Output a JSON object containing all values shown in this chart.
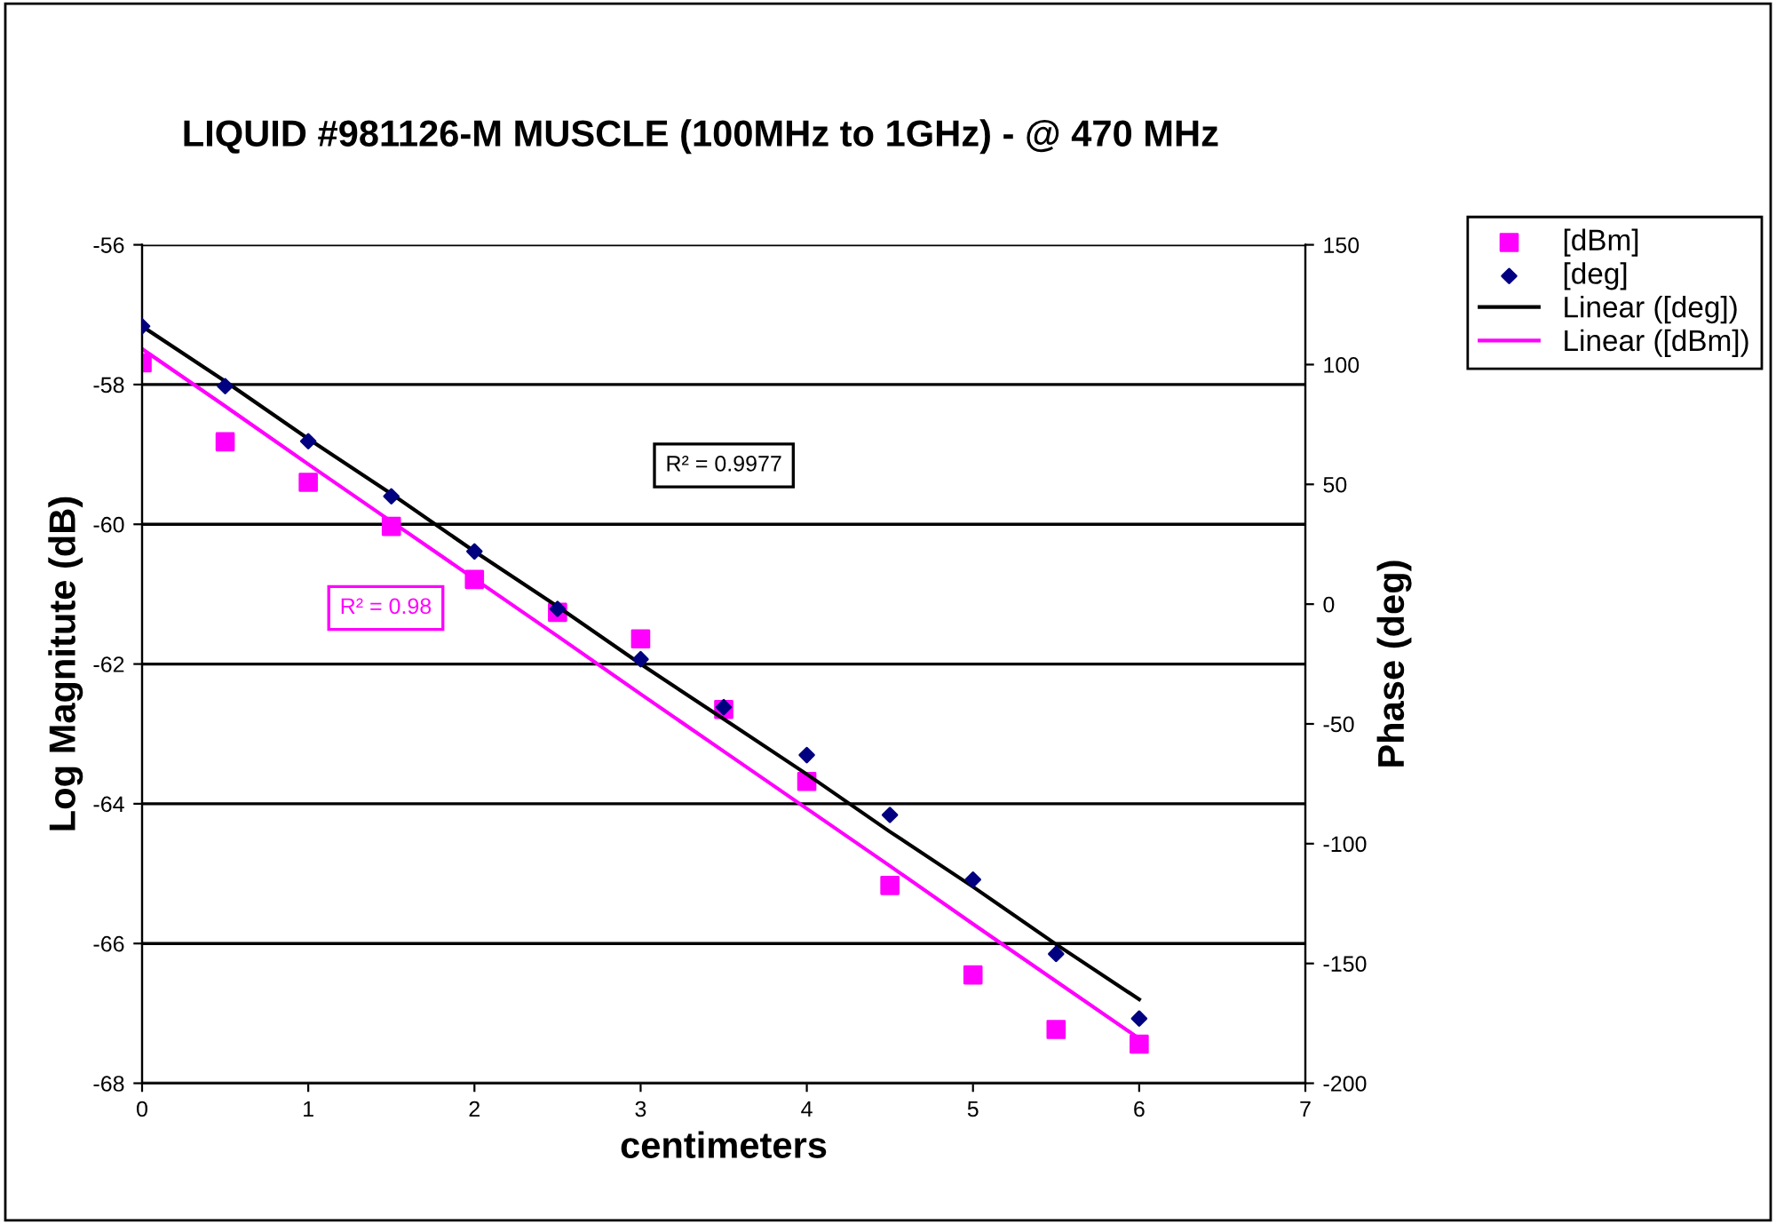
{
  "chart_data": {
    "type": "scatter",
    "title": "LIQUID #981126-M MUSCLE (100MHz to 1GHz) - @ 470 MHz",
    "xlabel": "centimeters",
    "ylabel": "Log Magnitute (dB)",
    "y2label": "Phase (deg)",
    "x": [
      0,
      0.5,
      1,
      1.5,
      2,
      2.5,
      3,
      3.5,
      4,
      4.5,
      5,
      5.5,
      6
    ],
    "series": [
      {
        "name": "[dBm]",
        "color": "#ff00ff",
        "marker": "square",
        "values": [
          -57.69,
          -58.82,
          -59.4,
          -60.03,
          -60.79,
          -61.26,
          -61.64,
          -62.65,
          -63.68,
          -65.17,
          -66.45,
          -67.23,
          -67.44
        ]
      },
      {
        "name": "[deg]",
        "color": "#000080",
        "marker": "diamond",
        "axis": "y2",
        "values": [
          116,
          91,
          68,
          45,
          22,
          -2,
          -23,
          -43,
          -63,
          -88,
          -115,
          -146,
          -173
        ]
      },
      {
        "name": "Linear ([deg])",
        "type": "line",
        "color": "#000000",
        "axis": "y2",
        "values": [
          116,
          93,
          69,
          46,
          22,
          -1,
          -25,
          -48,
          -71,
          -95,
          -118,
          -142,
          -165
        ]
      },
      {
        "name": "Linear ([dBm])",
        "type": "line",
        "color": "#ff00ff",
        "values": [
          -57.49,
          -58.31,
          -59.14,
          -59.96,
          -60.78,
          -61.6,
          -62.43,
          -63.25,
          -64.07,
          -64.89,
          -65.72,
          -66.54,
          -67.36
        ]
      }
    ],
    "annotations": [
      "R² = 0.9977",
      "R² = 0.98"
    ],
    "xlim": [
      0,
      7
    ],
    "xticks": [
      0,
      1,
      2,
      3,
      4,
      5,
      6,
      7
    ],
    "ylim": [
      -68,
      -56
    ],
    "yticks": [
      -68,
      -66,
      -64,
      -62,
      -60,
      -58,
      -56
    ],
    "y2lim": [
      -200,
      150
    ],
    "y2ticks": [
      -200,
      -150,
      -100,
      -50,
      0,
      50,
      100,
      150
    ],
    "grid": "y",
    "legend": "top right",
    "line_style": "solid"
  }
}
